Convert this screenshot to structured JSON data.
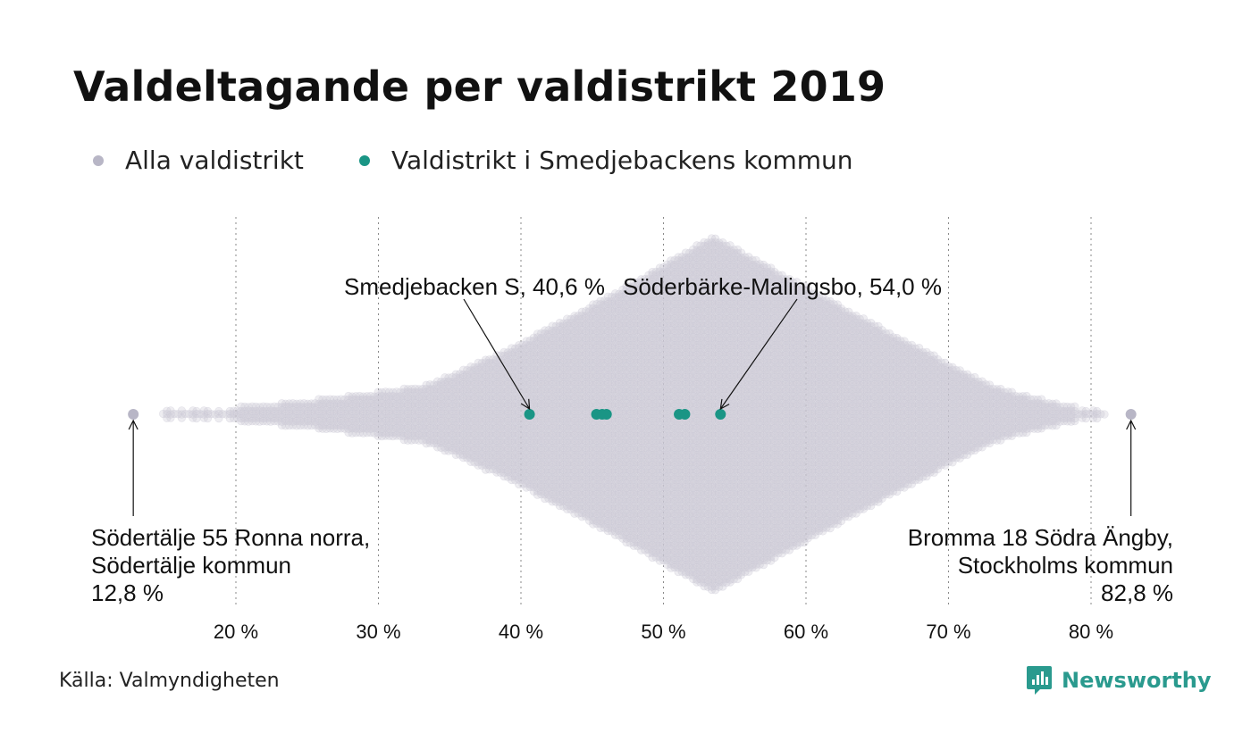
{
  "title": "Valdeltagande per valdistrikt 2019",
  "legend": [
    {
      "label": "Alla valdistrikt",
      "color": "#b8b6c6"
    },
    {
      "label": "Valdistrikt i Smedjebackens kommun",
      "color": "#1a9585"
    }
  ],
  "source": "Källa: Valmyndigheten",
  "brand": {
    "name": "Newsworthy",
    "color": "#2a9a8e",
    "icon": "bar-chart-logo-icon"
  },
  "colors": {
    "background_points": "#c9c7d4",
    "highlight": "#1a9585",
    "extreme_points": "#b8b6c6"
  },
  "chart_data": {
    "type": "scatter",
    "subtype": "beeswarm",
    "x_unit": "%",
    "xlim": [
      10,
      85
    ],
    "x_ticks": [
      20,
      30,
      40,
      50,
      60,
      70,
      80
    ],
    "x_tick_labels": [
      "20 %",
      "30 %",
      "40 %",
      "50 %",
      "60 %",
      "70 %",
      "80 %"
    ],
    "grid": "vertical-dotted",
    "series": [
      {
        "name": "Alla valdistrikt",
        "distribution_mode": 53.5,
        "min": 12.8,
        "max": 82.8
      },
      {
        "name": "Valdistrikt i Smedjebackens kommun",
        "values": [
          40.6,
          45.3,
          45.7,
          46.0,
          51.1,
          51.5,
          54.0
        ]
      }
    ],
    "annotations": [
      {
        "lines": [
          "Smedjebacken S, 40,6 %"
        ],
        "value": 40.6
      },
      {
        "lines": [
          "Söderbärke-Malingsbo, 54,0 %"
        ],
        "value": 54.0
      },
      {
        "lines": [
          "Södertälje 55 Ronna norra,",
          "Södertälje kommun",
          "12,8 %"
        ],
        "value": 12.8
      },
      {
        "lines": [
          "Bromma 18 Södra Ängby,",
          "Stockholms kommun",
          "82,8 %"
        ],
        "value": 82.8
      }
    ]
  }
}
